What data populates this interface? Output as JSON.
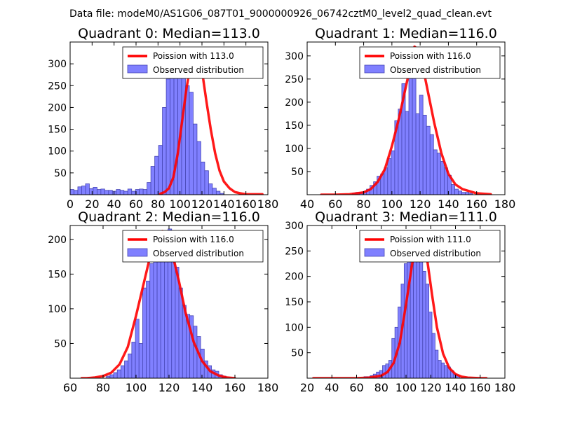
{
  "suptitle": "Data file: modeM0/AS1G06_087T01_9000000926_06742cztM0_level2_quad_clean.evt",
  "colors": {
    "bar_fill": "#8080ff",
    "bar_edge": "#4646b4",
    "curve": "#ff0000",
    "axis": "#000000"
  },
  "chart_data": [
    {
      "type": "bar",
      "title": "Quadrant 0: Median=113.0",
      "xlim": [
        0,
        180
      ],
      "ylim": [
        0,
        350
      ],
      "xticks": [
        0,
        20,
        40,
        60,
        80,
        100,
        120,
        140,
        160,
        180
      ],
      "yticks": [
        50,
        100,
        150,
        200,
        250,
        300
      ],
      "legend": {
        "placement": "upper right",
        "curve_label": "Poission with 113.0",
        "bar_label": "Observed distribution"
      },
      "bins": {
        "start": 0,
        "width": 3.5,
        "counts": [
          12,
          10,
          18,
          20,
          25,
          14,
          17,
          12,
          13,
          10,
          10,
          8,
          12,
          10,
          8,
          13,
          8,
          12,
          13,
          12,
          28,
          65,
          88,
          113,
          200,
          265,
          315,
          330,
          325,
          270,
          250,
          235,
          162,
          122,
          75,
          55,
          25,
          15,
          8,
          3
        ]
      },
      "curve": {
        "x": [
          82,
          86,
          90,
          94,
          98,
          102,
          106,
          110,
          113,
          116,
          120,
          124,
          128,
          132,
          136,
          140,
          145,
          150,
          155,
          160,
          165,
          170,
          175
        ],
        "y": [
          2,
          6,
          15,
          40,
          95,
          170,
          245,
          305,
          335,
          330,
          285,
          215,
          150,
          95,
          55,
          30,
          15,
          6,
          3,
          1,
          1,
          1,
          1
        ]
      }
    },
    {
      "type": "bar",
      "title": "Quadrant 1: Median=116.0",
      "xlim": [
        40,
        180
      ],
      "ylim": [
        0,
        330
      ],
      "xticks": [
        40,
        60,
        80,
        100,
        120,
        140,
        160,
        180
      ],
      "yticks": [
        50,
        100,
        150,
        200,
        250,
        300
      ],
      "legend": {
        "placement": "upper right",
        "curve_label": "Poission with 116.0",
        "bar_label": "Observed distribution"
      },
      "bins": {
        "start": 72,
        "width": 2.5,
        "counts": [
          3,
          5,
          5,
          7,
          12,
          20,
          28,
          40,
          45,
          58,
          78,
          95,
          160,
          185,
          240,
          180,
          275,
          305,
          175,
          215,
          172,
          148,
          130,
          97,
          90,
          72,
          58,
          42,
          22,
          12,
          8,
          5,
          5,
          3
        ]
      },
      "curve": {
        "x": [
          50,
          60,
          70,
          80,
          85,
          90,
          95,
          100,
          105,
          110,
          114,
          116,
          118,
          122,
          126,
          130,
          135,
          140,
          145,
          150,
          160,
          170
        ],
        "y": [
          0,
          0,
          1,
          5,
          12,
          28,
          55,
          105,
          165,
          235,
          290,
          320,
          315,
          275,
          215,
          155,
          90,
          45,
          22,
          12,
          3,
          1
        ]
      }
    },
    {
      "type": "bar",
      "title": "Quadrant 2: Median=116.0",
      "xlim": [
        60,
        180
      ],
      "ylim": [
        0,
        220
      ],
      "xticks": [
        60,
        80,
        100,
        120,
        140,
        160,
        180
      ],
      "yticks": [
        50,
        100,
        150,
        200
      ],
      "legend": {
        "placement": "upper right",
        "curve_label": "Poission with 116.0",
        "bar_label": "Observed distribution"
      },
      "bins": {
        "start": 82,
        "width": 2.2,
        "counts": [
          3,
          5,
          8,
          12,
          18,
          25,
          35,
          52,
          85,
          50,
          130,
          140,
          165,
          170,
          185,
          190,
          200,
          215,
          180,
          160,
          130,
          105,
          92,
          90,
          75,
          60,
          42,
          25,
          18,
          12,
          10,
          5,
          3
        ]
      },
      "curve": {
        "x": [
          67,
          70,
          75,
          80,
          85,
          90,
          95,
          100,
          105,
          110,
          114,
          116,
          118,
          122,
          126,
          130,
          135,
          140,
          145,
          150,
          155,
          160
        ],
        "y": [
          0,
          0,
          1,
          3,
          8,
          20,
          45,
          90,
          140,
          190,
          210,
          212,
          205,
          180,
          140,
          95,
          52,
          25,
          10,
          4,
          1,
          0
        ]
      }
    },
    {
      "type": "bar",
      "title": "Quadrant 3: Median=111.0",
      "xlim": [
        20,
        180
      ],
      "ylim": [
        0,
        300
      ],
      "xticks": [
        20,
        40,
        60,
        80,
        100,
        120,
        140,
        160,
        180
      ],
      "yticks": [
        50,
        100,
        150,
        200,
        250,
        300
      ],
      "legend": {
        "placement": "upper right",
        "curve_label": "Poission with 111.0",
        "bar_label": "Observed distribution"
      },
      "bins": {
        "start": 66,
        "width": 2.5,
        "counts": [
          3,
          3,
          5,
          8,
          12,
          15,
          25,
          28,
          35,
          78,
          100,
          140,
          185,
          225,
          250,
          265,
          275,
          290,
          240,
          210,
          185,
          130,
          88,
          55,
          35,
          30,
          25,
          22,
          15,
          8,
          5
        ]
      },
      "curve": {
        "x": [
          25,
          40,
          60,
          70,
          80,
          85,
          90,
          95,
          100,
          105,
          109,
          111,
          113,
          117,
          121,
          125,
          130,
          135,
          140,
          145,
          150,
          160,
          165
        ],
        "y": [
          0,
          0,
          0,
          1,
          5,
          12,
          30,
          70,
          145,
          225,
          278,
          288,
          280,
          235,
          165,
          100,
          48,
          20,
          8,
          3,
          1,
          0,
          0
        ]
      }
    }
  ]
}
